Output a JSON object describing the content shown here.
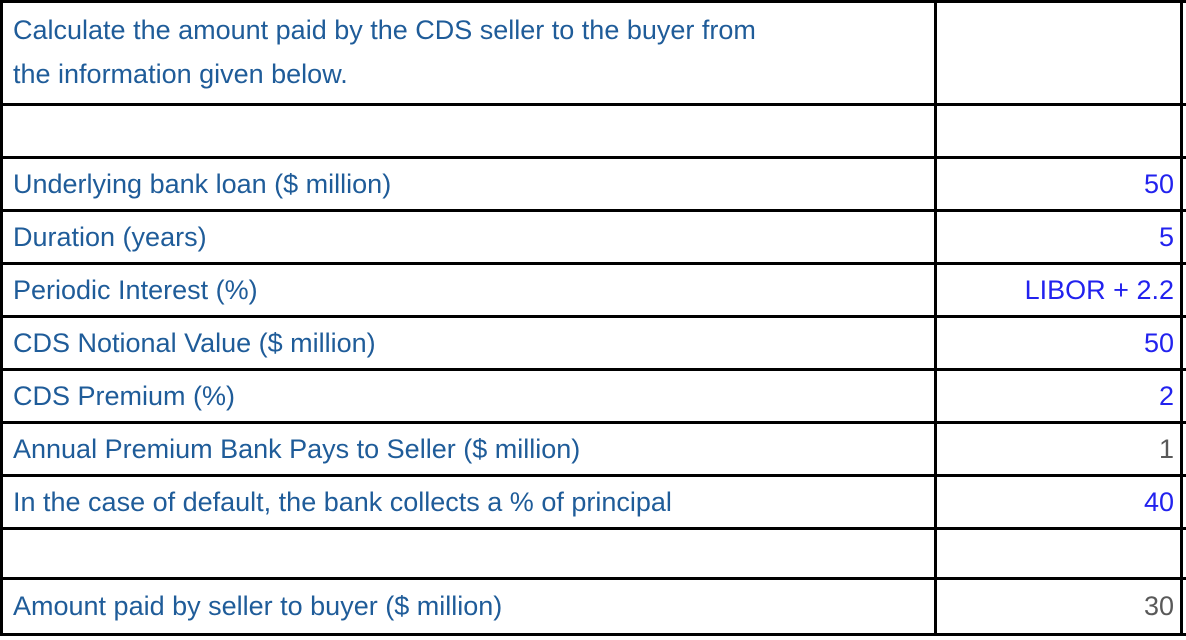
{
  "sheet": {
    "title_lines": [
      "Calculate the amount paid by the CDS seller to the buyer from",
      "the information given below."
    ],
    "rows": [
      {
        "label": "Underlying bank loan ($ million)",
        "value": "50",
        "value_kind": "given"
      },
      {
        "label": "Duration (years)",
        "value": "5",
        "value_kind": "given"
      },
      {
        "label": "Periodic Interest (%)",
        "value": "LIBOR + 2.2",
        "value_kind": "given"
      },
      {
        "label": "CDS Notional Value ($ million)",
        "value": "50",
        "value_kind": "given"
      },
      {
        "label": "CDS Premium (%)",
        "value": "2",
        "value_kind": "given"
      },
      {
        "label": "Annual Premium Bank Pays to Seller ($ million)",
        "value": "1",
        "value_kind": "computed"
      },
      {
        "label": "In the case of default, the bank collects a % of principal",
        "value": "40",
        "value_kind": "given"
      }
    ],
    "result": {
      "label": "Amount paid by seller to buyer ($ million)",
      "value": "30",
      "value_kind": "computed"
    }
  },
  "colors": {
    "label_text": "#1F5C99",
    "given_value_text": "#2222EE",
    "computed_value_text": "#595959",
    "grid_line": "#000000",
    "cell_bg": "#FFFFFF"
  }
}
